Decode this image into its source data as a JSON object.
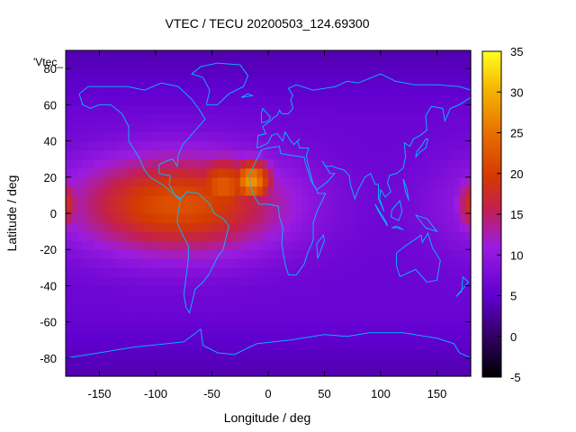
{
  "chart_data": {
    "type": "heatmap",
    "title": "VTEC / TECU 20200503_124.69300",
    "key_label": "'Vtec_",
    "xlabel": "Longitude / deg",
    "ylabel": "Latitude / deg",
    "xlim": [
      -180,
      180
    ],
    "ylim": [
      -90,
      90
    ],
    "xticks": [
      -150,
      -100,
      -50,
      0,
      50,
      100,
      150
    ],
    "yticks": [
      -80,
      -60,
      -40,
      -20,
      0,
      20,
      40,
      60,
      80
    ],
    "colorbar": {
      "range": [
        -5,
        35
      ],
      "ticks": [
        -5,
        0,
        5,
        10,
        15,
        20,
        25,
        30,
        35
      ],
      "palette": "black-purple-red-orange-yellow"
    },
    "background_vtec": 6,
    "features": [
      {
        "name": "equatorial anomaly (main)",
        "lon_center": -80,
        "lat_center": 5,
        "lon_halfwidth": 110,
        "lat_halfwidth": 32,
        "peak": 22
      },
      {
        "name": "peak region West Africa",
        "lon_center": -15,
        "lat_center": 18,
        "lon_halfwidth": 22,
        "lat_halfwidth": 14,
        "peak": 28
      },
      {
        "name": "western Atlantic crest",
        "lon_center": -40,
        "lat_center": 15,
        "lon_halfwidth": 35,
        "lat_halfwidth": 20,
        "peak": 23
      },
      {
        "name": "date-line edge maximum",
        "lon_center": 180,
        "lat_center": 5,
        "lon_halfwidth": 15,
        "lat_halfwidth": 18,
        "peak": 18
      }
    ]
  }
}
